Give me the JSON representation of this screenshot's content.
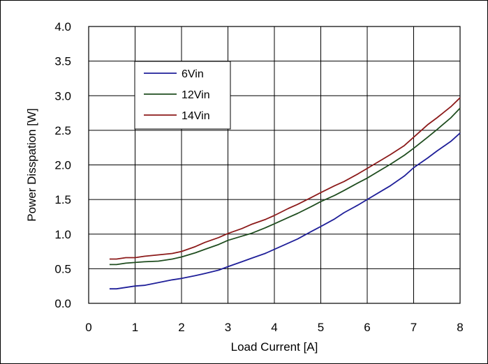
{
  "chart_data": {
    "type": "line",
    "title": "",
    "xlabel": "Load Current [A]",
    "ylabel": "Power Disspation [W]",
    "xlim": [
      0,
      8
    ],
    "ylim": [
      0,
      4.0
    ],
    "x_ticks": [
      "0",
      "1",
      "2",
      "3",
      "4",
      "5",
      "6",
      "7",
      "8"
    ],
    "y_ticks": [
      "0.0",
      "0.5",
      "1.0",
      "1.5",
      "2.0",
      "2.5",
      "3.0",
      "3.5",
      "4.0"
    ],
    "grid": true,
    "legend_position": "top-left",
    "series": [
      {
        "name": "6Vin",
        "color": "#1f1f99",
        "x": [
          0.45,
          0.6,
          0.8,
          1.0,
          1.2,
          1.5,
          1.8,
          2.0,
          2.3,
          2.5,
          2.8,
          3.0,
          3.3,
          3.5,
          3.8,
          4.0,
          4.3,
          4.5,
          4.8,
          5.0,
          5.3,
          5.5,
          5.8,
          6.0,
          6.3,
          6.5,
          6.8,
          7.0,
          7.3,
          7.5,
          7.8,
          8.0
        ],
        "y": [
          0.21,
          0.21,
          0.23,
          0.25,
          0.26,
          0.3,
          0.34,
          0.36,
          0.4,
          0.43,
          0.48,
          0.53,
          0.6,
          0.65,
          0.72,
          0.78,
          0.87,
          0.93,
          1.04,
          1.11,
          1.22,
          1.31,
          1.42,
          1.5,
          1.62,
          1.7,
          1.84,
          1.96,
          2.1,
          2.2,
          2.34,
          2.46
        ]
      },
      {
        "name": "12Vin",
        "color": "#1f4d1f",
        "x": [
          0.45,
          0.6,
          0.8,
          1.0,
          1.2,
          1.5,
          1.8,
          2.0,
          2.3,
          2.5,
          2.8,
          3.0,
          3.3,
          3.5,
          3.8,
          4.0,
          4.3,
          4.5,
          4.8,
          5.0,
          5.3,
          5.5,
          5.8,
          6.0,
          6.3,
          6.5,
          6.8,
          7.0,
          7.3,
          7.5,
          7.8,
          8.0
        ],
        "y": [
          0.56,
          0.56,
          0.58,
          0.59,
          0.6,
          0.61,
          0.64,
          0.67,
          0.73,
          0.78,
          0.85,
          0.91,
          0.97,
          1.01,
          1.09,
          1.15,
          1.24,
          1.3,
          1.4,
          1.47,
          1.56,
          1.63,
          1.74,
          1.81,
          1.93,
          2.01,
          2.14,
          2.24,
          2.4,
          2.51,
          2.68,
          2.82
        ]
      },
      {
        "name": "14Vin",
        "color": "#8c1a1a",
        "x": [
          0.45,
          0.6,
          0.8,
          1.0,
          1.2,
          1.5,
          1.8,
          2.0,
          2.3,
          2.5,
          2.8,
          3.0,
          3.3,
          3.5,
          3.8,
          4.0,
          4.3,
          4.5,
          4.8,
          5.0,
          5.3,
          5.5,
          5.8,
          6.0,
          6.3,
          6.5,
          6.8,
          7.0,
          7.3,
          7.5,
          7.8,
          8.0
        ],
        "y": [
          0.64,
          0.64,
          0.66,
          0.66,
          0.68,
          0.7,
          0.72,
          0.75,
          0.82,
          0.88,
          0.95,
          1.01,
          1.08,
          1.14,
          1.21,
          1.27,
          1.37,
          1.43,
          1.53,
          1.6,
          1.7,
          1.76,
          1.87,
          1.95,
          2.07,
          2.15,
          2.28,
          2.4,
          2.58,
          2.68,
          2.84,
          2.97
        ]
      }
    ]
  }
}
